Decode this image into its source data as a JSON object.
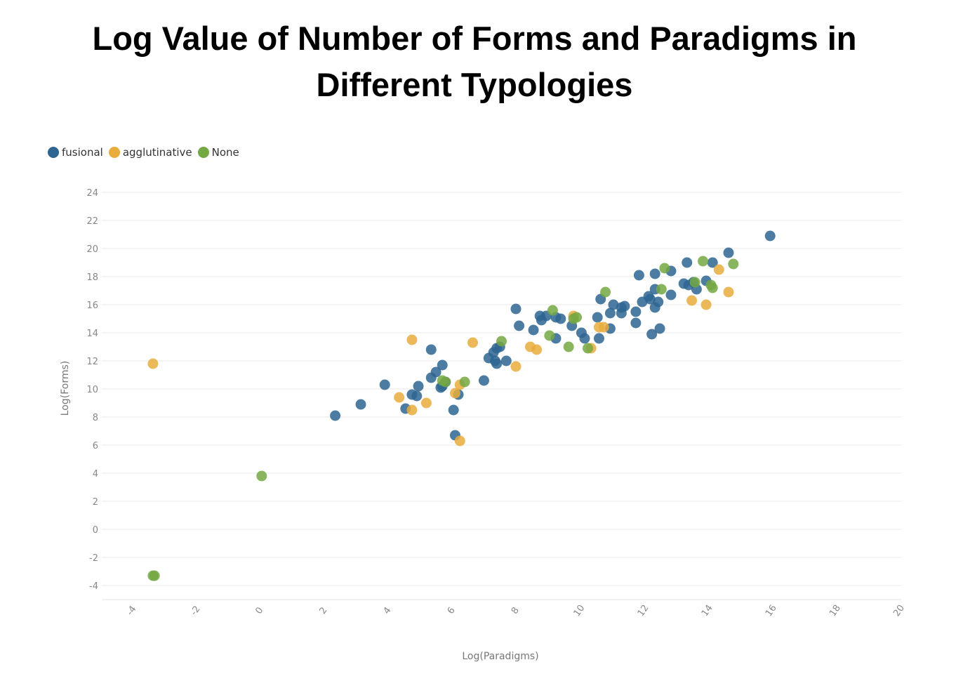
{
  "chart_data": {
    "type": "scatter",
    "title_line1": "Log Value of Number of Forms and Paradigms in",
    "title_line2": "Different Typologies",
    "xlabel": "Log(Paradigms)",
    "ylabel": "Log(Forms)",
    "xlim": [
      -5,
      20
    ],
    "ylim": [
      -5,
      24
    ],
    "xticks": [
      "-4",
      "-2",
      "0",
      "2",
      "4",
      "6",
      "8",
      "10",
      "12",
      "14",
      "16",
      "18",
      "20"
    ],
    "yticks": [
      "24",
      "22",
      "20",
      "18",
      "16",
      "14",
      "12",
      "10",
      "8",
      "6",
      "4",
      "2",
      "0",
      "-2",
      "-4"
    ],
    "grid": true,
    "legend_position": "top-left",
    "series": [
      {
        "name": "fusional",
        "color": "#2e6592",
        "points": [
          [
            15.9,
            20.9
          ],
          [
            14.6,
            19.7
          ],
          [
            14.1,
            19.0
          ],
          [
            13.3,
            19.0
          ],
          [
            12.8,
            18.4
          ],
          [
            12.3,
            18.2
          ],
          [
            11.8,
            18.1
          ],
          [
            13.9,
            17.7
          ],
          [
            13.5,
            17.6
          ],
          [
            13.2,
            17.5
          ],
          [
            13.35,
            17.4
          ],
          [
            13.6,
            17.1
          ],
          [
            12.3,
            17.1
          ],
          [
            12.8,
            16.7
          ],
          [
            12.1,
            16.6
          ],
          [
            12.15,
            16.4
          ],
          [
            11.9,
            16.2
          ],
          [
            12.4,
            16.2
          ],
          [
            10.6,
            16.4
          ],
          [
            11.0,
            16.0
          ],
          [
            11.35,
            15.9
          ],
          [
            11.25,
            15.8
          ],
          [
            12.3,
            15.8
          ],
          [
            7.95,
            15.7
          ],
          [
            11.7,
            15.5
          ],
          [
            10.9,
            15.4
          ],
          [
            11.25,
            15.4
          ],
          [
            8.7,
            15.2
          ],
          [
            8.9,
            15.2
          ],
          [
            9.2,
            15.1
          ],
          [
            9.35,
            15.0
          ],
          [
            10.5,
            15.1
          ],
          [
            8.75,
            14.9
          ],
          [
            8.05,
            14.5
          ],
          [
            9.7,
            14.5
          ],
          [
            11.7,
            14.7
          ],
          [
            8.5,
            14.2
          ],
          [
            10.0,
            14.0
          ],
          [
            10.9,
            14.3
          ],
          [
            12.45,
            14.3
          ],
          [
            12.2,
            13.9
          ],
          [
            9.2,
            13.6
          ],
          [
            10.1,
            13.6
          ],
          [
            10.55,
            13.6
          ],
          [
            7.45,
            13.0
          ],
          [
            7.35,
            12.9
          ],
          [
            7.25,
            12.6
          ],
          [
            5.3,
            12.8
          ],
          [
            7.1,
            12.2
          ],
          [
            7.3,
            12.0
          ],
          [
            7.35,
            11.8
          ],
          [
            7.65,
            12.0
          ],
          [
            5.65,
            11.7
          ],
          [
            5.45,
            11.2
          ],
          [
            5.3,
            10.8
          ],
          [
            6.95,
            10.6
          ],
          [
            5.75,
            10.5
          ],
          [
            3.85,
            10.3
          ],
          [
            4.9,
            10.2
          ],
          [
            5.6,
            10.1
          ],
          [
            5.65,
            10.2
          ],
          [
            4.7,
            9.6
          ],
          [
            4.85,
            9.5
          ],
          [
            6.15,
            9.6
          ],
          [
            3.1,
            8.9
          ],
          [
            4.5,
            8.6
          ],
          [
            6.0,
            8.5
          ],
          [
            2.3,
            8.1
          ],
          [
            6.05,
            6.7
          ]
        ]
      },
      {
        "name": "agglutinative",
        "color": "#e8ad3c",
        "points": [
          [
            14.3,
            18.5
          ],
          [
            14.6,
            16.9
          ],
          [
            13.45,
            16.3
          ],
          [
            13.9,
            16.0
          ],
          [
            9.75,
            15.2
          ],
          [
            10.55,
            14.4
          ],
          [
            10.7,
            14.4
          ],
          [
            4.7,
            13.5
          ],
          [
            6.6,
            13.3
          ],
          [
            8.4,
            13.0
          ],
          [
            8.6,
            12.8
          ],
          [
            10.3,
            12.9
          ],
          [
            7.95,
            11.6
          ],
          [
            -3.4,
            11.8
          ],
          [
            6.2,
            10.3
          ],
          [
            6.05,
            9.7
          ],
          [
            4.3,
            9.4
          ],
          [
            5.15,
            9.0
          ],
          [
            4.7,
            8.5
          ],
          [
            6.2,
            6.3
          ]
        ]
      },
      {
        "name": "None",
        "color": "#74a843",
        "points": [
          [
            13.8,
            19.1
          ],
          [
            14.75,
            18.9
          ],
          [
            12.6,
            18.6
          ],
          [
            12.5,
            17.1
          ],
          [
            14.05,
            17.4
          ],
          [
            14.1,
            17.2
          ],
          [
            13.55,
            17.6
          ],
          [
            10.75,
            16.9
          ],
          [
            9.1,
            15.6
          ],
          [
            9.75,
            15.0
          ],
          [
            9.85,
            15.1
          ],
          [
            7.5,
            13.4
          ],
          [
            9.0,
            13.8
          ],
          [
            9.6,
            13.0
          ],
          [
            10.2,
            12.9
          ],
          [
            6.35,
            10.5
          ],
          [
            5.75,
            10.5
          ],
          [
            5.65,
            10.6
          ],
          [
            0.0,
            3.8
          ],
          [
            -3.35,
            -3.3
          ],
          [
            -3.4,
            -3.3
          ]
        ]
      }
    ]
  }
}
